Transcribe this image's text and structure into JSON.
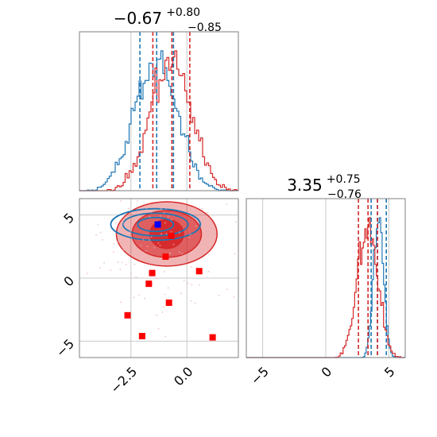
{
  "chart_data": [
    {
      "panel": "marginal-x",
      "type": "histogram",
      "title_main": "−0.67",
      "title_sup": "+0.80",
      "title_sub": "−0.85",
      "xlim": [
        -4.8,
        2.3
      ],
      "grid": true,
      "x_gridlines": [
        -2.5,
        0.0
      ],
      "series": [
        {
          "color": "#1f77b4",
          "median": -1.35,
          "quantiles": [
            -2.1,
            -0.6
          ],
          "center": -1.35,
          "width": 0.95
        },
        {
          "color": "#d62728",
          "median": -0.67,
          "quantiles": [
            -1.52,
            0.13
          ],
          "center": -0.67,
          "width": 0.9
        }
      ]
    },
    {
      "panel": "marginal-y",
      "type": "histogram",
      "title_main": "3.35",
      "title_sup": "+0.75",
      "title_sub": "−0.76",
      "xlim": [
        -6.3,
        6.3
      ],
      "x_ticks": [
        -5,
        0,
        5
      ],
      "x_tick_labels": [
        "−5",
        "0",
        "5"
      ],
      "grid": true,
      "series": [
        {
          "color": "#1f77b4",
          "median": 4.1,
          "quantiles": [
            3.6,
            4.8
          ],
          "center": 4.2,
          "width": 0.4
        },
        {
          "color": "#d62728",
          "median": 3.35,
          "quantiles": [
            2.59,
            4.1
          ],
          "center": 3.35,
          "width": 0.8
        }
      ]
    },
    {
      "panel": "joint",
      "type": "scatter",
      "xlim": [
        -4.8,
        2.3
      ],
      "ylim": [
        -6.3,
        6.3
      ],
      "x_ticks": [
        -2.5,
        0.0
      ],
      "x_tick_labels": [
        "−2.5",
        "0.0"
      ],
      "y_ticks": [
        -5,
        0,
        5
      ],
      "y_tick_labels": [
        "−5",
        "0",
        "5"
      ],
      "grid": true,
      "red_contours": {
        "color": "#d62728",
        "center": [
          -0.9,
          3.5
        ],
        "levels": [
          {
            "rx": 0.75,
            "ry": 1.15,
            "alpha": 0.9
          },
          {
            "rx": 1.55,
            "ry": 1.85,
            "alpha": 0.6
          },
          {
            "rx": 2.25,
            "ry": 2.55,
            "alpha": 0.35
          }
        ]
      },
      "blue_contours": {
        "color": "#1f77b4",
        "center": [
          -1.4,
          4.25
        ],
        "levels": [
          {
            "rx": 0.8,
            "ry": 0.55
          },
          {
            "rx": 1.45,
            "ry": 0.9
          },
          {
            "rx": 2.0,
            "ry": 1.25
          }
        ]
      },
      "blue_point": {
        "x": -1.3,
        "y": 4.25,
        "color": "#0000ff"
      },
      "red_points": {
        "color": "#ff0000",
        "x": [
          -0.7,
          -0.95,
          -1.55,
          -1.7,
          0.55,
          -0.8,
          -2.65,
          -2.0,
          1.15
        ],
        "y": [
          3.35,
          1.7,
          0.4,
          -0.45,
          0.55,
          -1.95,
          -2.95,
          -4.6,
          -4.7
        ]
      }
    }
  ]
}
